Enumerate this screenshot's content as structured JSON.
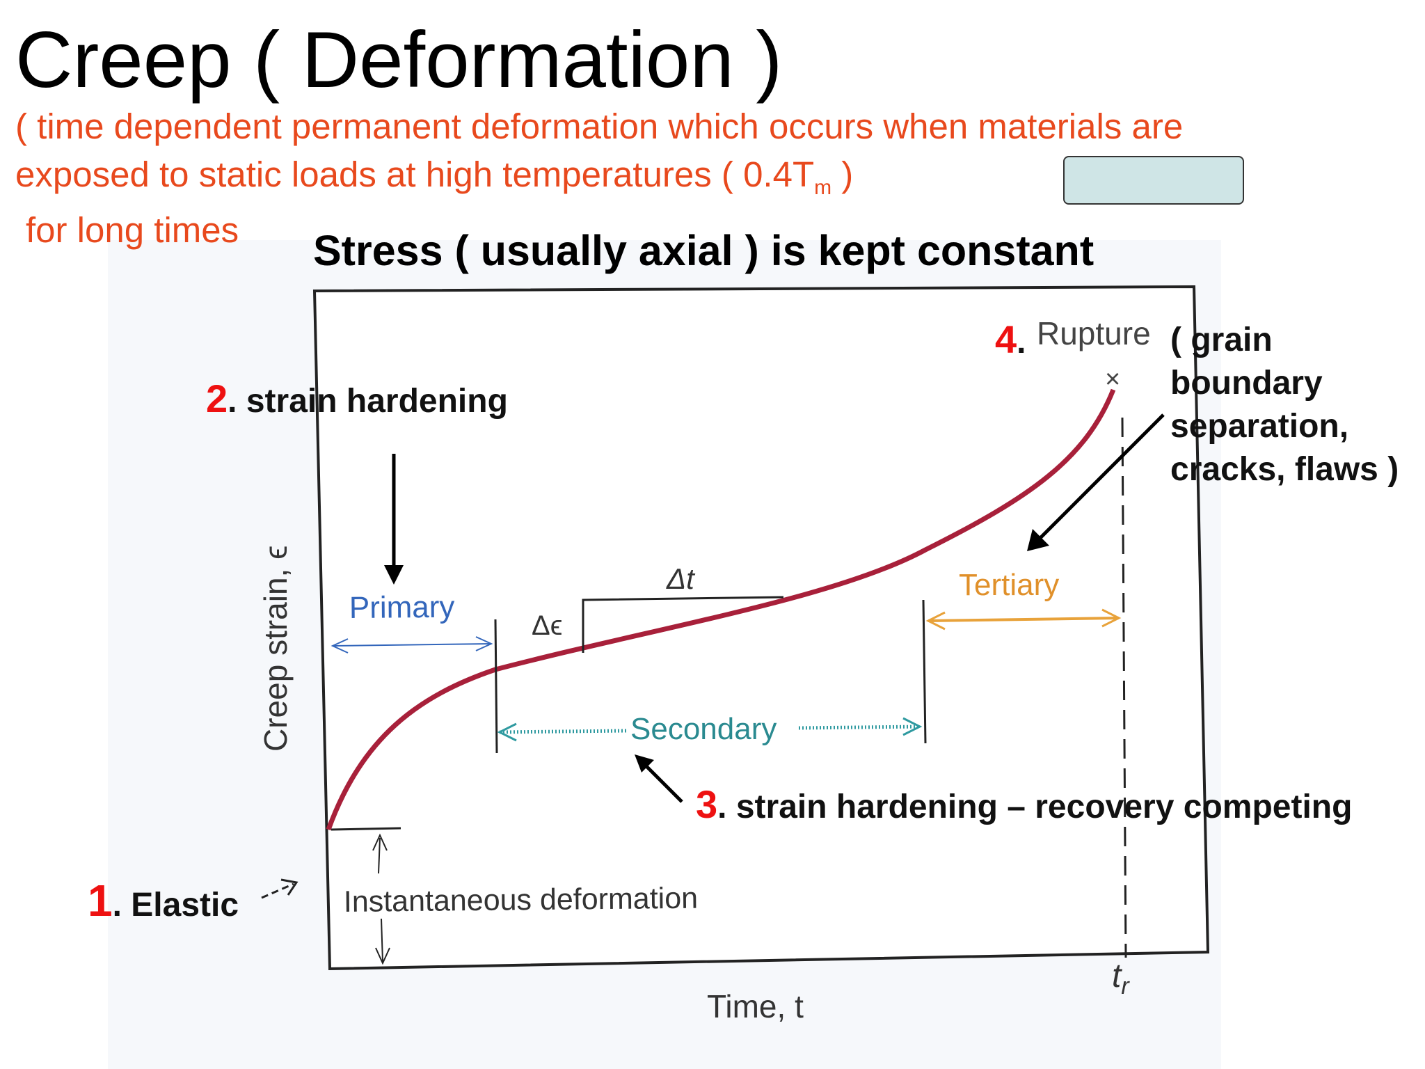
{
  "title": "Creep ( Deformation )",
  "definition": {
    "line1": "( time dependent permanent deformation which occurs when materials are",
    "line2_main": "exposed to static loads at high temperatures ( 0.4T",
    "line2_sub": "m",
    "line2_end": " )",
    "line3": "for long times"
  },
  "heading": "Stress ( usually axial ) is kept constant",
  "diagram": {
    "y_axis_label": "Creep strain, ϵ",
    "x_axis_label": "Time, t",
    "rupture_time_label": "t",
    "rupture_time_sub": "r",
    "stage_primary": "Primary",
    "stage_secondary": "Secondary",
    "stage_tertiary": "Tertiary",
    "delta_t": "Δt",
    "delta_eps": "Δϵ",
    "instantaneous": "Instantaneous deformation",
    "rupture": "Rupture",
    "rupture_mark": "×",
    "colors": {
      "curve": "#a8203a",
      "primary": "#3366bb",
      "secondary": "#2f9aa0",
      "tertiary": "#e8a23a"
    }
  },
  "annotations": {
    "a1": {
      "number": "1",
      "text": ". Elastic"
    },
    "a2": {
      "number": "2",
      "text": ".  strain hardening"
    },
    "a3": {
      "number": "3",
      "text": ". strain hardening – recovery competing"
    },
    "a4": {
      "number": "4",
      "text": "."
    },
    "rupture_note": [
      "( grain",
      "boundary",
      "separation,",
      "cracks, flaws )"
    ]
  }
}
